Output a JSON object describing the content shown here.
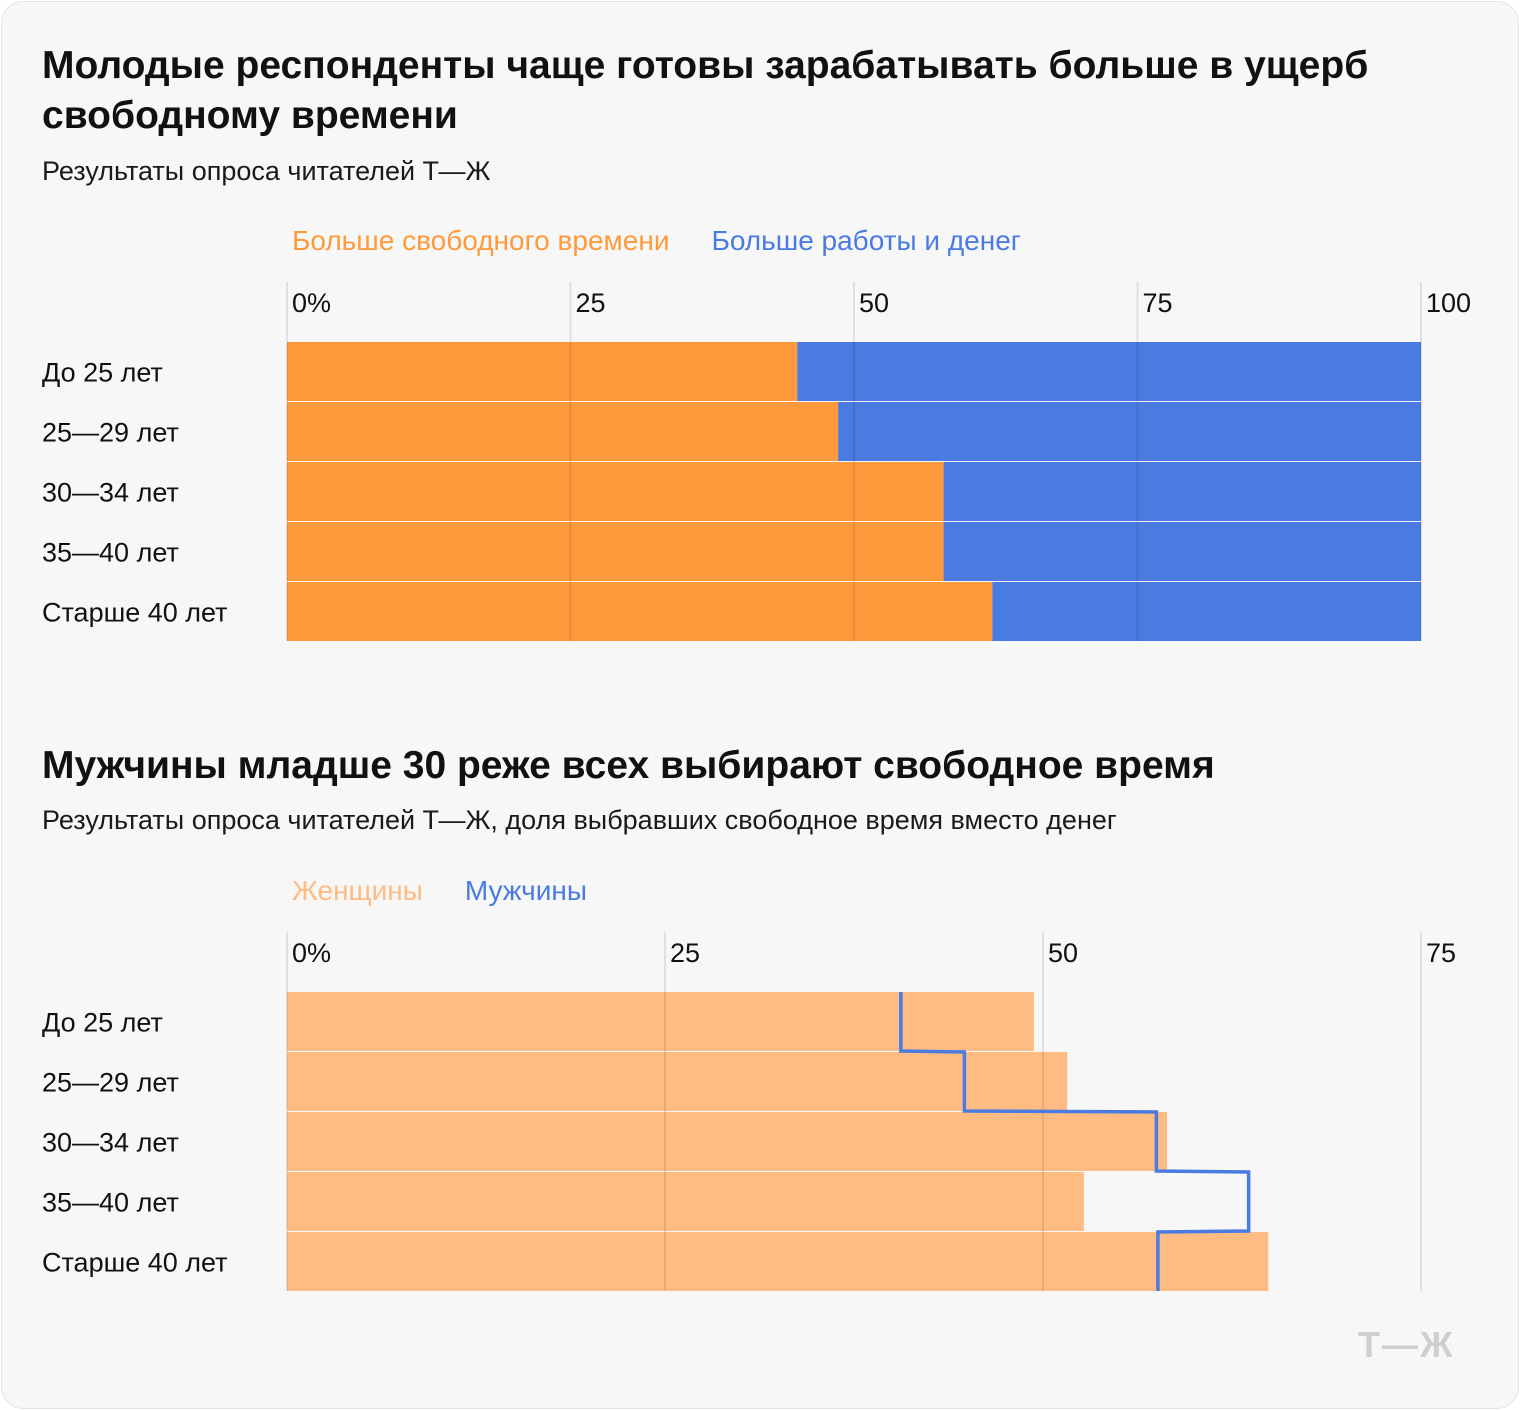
{
  "chart_data": [
    {
      "type": "bar",
      "orientation": "horizontal",
      "stacked": true,
      "title": "Молодые респонденты чаще готовы зарабатывать больше в ущерб свободному времени",
      "subtitle": "Результаты опроса читателей Т—Ж",
      "categories": [
        "До 25 лет",
        "25—29 лет",
        "30—34 лет",
        "35—40 лет",
        "Старше 40 лет"
      ],
      "series": [
        {
          "name": "Больше свободного времени",
          "color": "#ff9a3c",
          "values": [
            45,
            48.6,
            57.9,
            57.9,
            62.2
          ]
        },
        {
          "name": "Больше работы и денег",
          "color": "#4a7be0",
          "values": [
            55,
            51.4,
            42.1,
            42.1,
            37.8
          ]
        }
      ],
      "xlim": [
        0,
        100
      ],
      "xticks": [
        "0%",
        "25",
        "50",
        "75",
        "100"
      ],
      "xtick_values": [
        0,
        25,
        50,
        75,
        100
      ],
      "grid": true,
      "legend": "top-left"
    },
    {
      "type": "bar",
      "orientation": "horizontal",
      "title": "Мужчины младше 30 реже всех выбирают свободное время",
      "subtitle": "Результаты опроса читателей Т—Ж, доля выбравших свободное время вместо денег",
      "categories": [
        "До 25 лет",
        "25—29 лет",
        "30—34 лет",
        "35—40 лет",
        "Старше 40 лет"
      ],
      "series": [
        {
          "name": "Женщины",
          "color": "#ffbc82",
          "mark": "bar",
          "values": [
            49.4,
            51.6,
            58.2,
            52.7,
            64.9
          ]
        },
        {
          "name": "Мужчины",
          "color": "#4a7be0",
          "mark": "step-line",
          "values": [
            40.6,
            44.8,
            57.5,
            63.6,
            57.6
          ]
        }
      ],
      "xlim": [
        0,
        75
      ],
      "xticks": [
        "0%",
        "25",
        "50",
        "75"
      ],
      "xtick_values": [
        0,
        25,
        50,
        75
      ],
      "grid": true,
      "legend": "top-left"
    }
  ],
  "logo": "Т—Ж"
}
